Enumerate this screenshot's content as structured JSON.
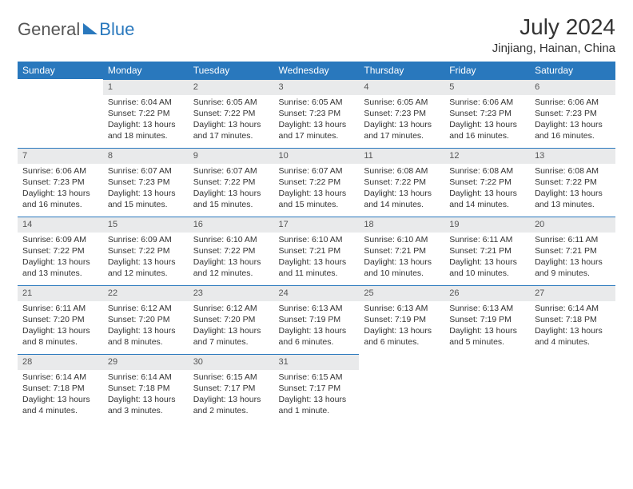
{
  "logo": {
    "part1": "General",
    "part2": "Blue"
  },
  "title": "July 2024",
  "location": "Jinjiang, Hainan, China",
  "colors": {
    "header_bg": "#2978bd",
    "header_text": "#ffffff",
    "daynum_bg": "#e9eaeb",
    "daynum_border": "#2978bd",
    "body_text": "#333333",
    "background": "#ffffff"
  },
  "fonts": {
    "title_size": 28,
    "location_size": 15,
    "th_size": 12,
    "cell_size": 10.5
  },
  "weekdays": [
    "Sunday",
    "Monday",
    "Tuesday",
    "Wednesday",
    "Thursday",
    "Friday",
    "Saturday"
  ],
  "weeks": [
    [
      null,
      {
        "n": "1",
        "sr": "Sunrise: 6:04 AM",
        "ss": "Sunset: 7:22 PM",
        "d1": "Daylight: 13 hours",
        "d2": "and 18 minutes."
      },
      {
        "n": "2",
        "sr": "Sunrise: 6:05 AM",
        "ss": "Sunset: 7:22 PM",
        "d1": "Daylight: 13 hours",
        "d2": "and 17 minutes."
      },
      {
        "n": "3",
        "sr": "Sunrise: 6:05 AM",
        "ss": "Sunset: 7:23 PM",
        "d1": "Daylight: 13 hours",
        "d2": "and 17 minutes."
      },
      {
        "n": "4",
        "sr": "Sunrise: 6:05 AM",
        "ss": "Sunset: 7:23 PM",
        "d1": "Daylight: 13 hours",
        "d2": "and 17 minutes."
      },
      {
        "n": "5",
        "sr": "Sunrise: 6:06 AM",
        "ss": "Sunset: 7:23 PM",
        "d1": "Daylight: 13 hours",
        "d2": "and 16 minutes."
      },
      {
        "n": "6",
        "sr": "Sunrise: 6:06 AM",
        "ss": "Sunset: 7:23 PM",
        "d1": "Daylight: 13 hours",
        "d2": "and 16 minutes."
      }
    ],
    [
      {
        "n": "7",
        "sr": "Sunrise: 6:06 AM",
        "ss": "Sunset: 7:23 PM",
        "d1": "Daylight: 13 hours",
        "d2": "and 16 minutes."
      },
      {
        "n": "8",
        "sr": "Sunrise: 6:07 AM",
        "ss": "Sunset: 7:23 PM",
        "d1": "Daylight: 13 hours",
        "d2": "and 15 minutes."
      },
      {
        "n": "9",
        "sr": "Sunrise: 6:07 AM",
        "ss": "Sunset: 7:22 PM",
        "d1": "Daylight: 13 hours",
        "d2": "and 15 minutes."
      },
      {
        "n": "10",
        "sr": "Sunrise: 6:07 AM",
        "ss": "Sunset: 7:22 PM",
        "d1": "Daylight: 13 hours",
        "d2": "and 15 minutes."
      },
      {
        "n": "11",
        "sr": "Sunrise: 6:08 AM",
        "ss": "Sunset: 7:22 PM",
        "d1": "Daylight: 13 hours",
        "d2": "and 14 minutes."
      },
      {
        "n": "12",
        "sr": "Sunrise: 6:08 AM",
        "ss": "Sunset: 7:22 PM",
        "d1": "Daylight: 13 hours",
        "d2": "and 14 minutes."
      },
      {
        "n": "13",
        "sr": "Sunrise: 6:08 AM",
        "ss": "Sunset: 7:22 PM",
        "d1": "Daylight: 13 hours",
        "d2": "and 13 minutes."
      }
    ],
    [
      {
        "n": "14",
        "sr": "Sunrise: 6:09 AM",
        "ss": "Sunset: 7:22 PM",
        "d1": "Daylight: 13 hours",
        "d2": "and 13 minutes."
      },
      {
        "n": "15",
        "sr": "Sunrise: 6:09 AM",
        "ss": "Sunset: 7:22 PM",
        "d1": "Daylight: 13 hours",
        "d2": "and 12 minutes."
      },
      {
        "n": "16",
        "sr": "Sunrise: 6:10 AM",
        "ss": "Sunset: 7:22 PM",
        "d1": "Daylight: 13 hours",
        "d2": "and 12 minutes."
      },
      {
        "n": "17",
        "sr": "Sunrise: 6:10 AM",
        "ss": "Sunset: 7:21 PM",
        "d1": "Daylight: 13 hours",
        "d2": "and 11 minutes."
      },
      {
        "n": "18",
        "sr": "Sunrise: 6:10 AM",
        "ss": "Sunset: 7:21 PM",
        "d1": "Daylight: 13 hours",
        "d2": "and 10 minutes."
      },
      {
        "n": "19",
        "sr": "Sunrise: 6:11 AM",
        "ss": "Sunset: 7:21 PM",
        "d1": "Daylight: 13 hours",
        "d2": "and 10 minutes."
      },
      {
        "n": "20",
        "sr": "Sunrise: 6:11 AM",
        "ss": "Sunset: 7:21 PM",
        "d1": "Daylight: 13 hours",
        "d2": "and 9 minutes."
      }
    ],
    [
      {
        "n": "21",
        "sr": "Sunrise: 6:11 AM",
        "ss": "Sunset: 7:20 PM",
        "d1": "Daylight: 13 hours",
        "d2": "and 8 minutes."
      },
      {
        "n": "22",
        "sr": "Sunrise: 6:12 AM",
        "ss": "Sunset: 7:20 PM",
        "d1": "Daylight: 13 hours",
        "d2": "and 8 minutes."
      },
      {
        "n": "23",
        "sr": "Sunrise: 6:12 AM",
        "ss": "Sunset: 7:20 PM",
        "d1": "Daylight: 13 hours",
        "d2": "and 7 minutes."
      },
      {
        "n": "24",
        "sr": "Sunrise: 6:13 AM",
        "ss": "Sunset: 7:19 PM",
        "d1": "Daylight: 13 hours",
        "d2": "and 6 minutes."
      },
      {
        "n": "25",
        "sr": "Sunrise: 6:13 AM",
        "ss": "Sunset: 7:19 PM",
        "d1": "Daylight: 13 hours",
        "d2": "and 6 minutes."
      },
      {
        "n": "26",
        "sr": "Sunrise: 6:13 AM",
        "ss": "Sunset: 7:19 PM",
        "d1": "Daylight: 13 hours",
        "d2": "and 5 minutes."
      },
      {
        "n": "27",
        "sr": "Sunrise: 6:14 AM",
        "ss": "Sunset: 7:18 PM",
        "d1": "Daylight: 13 hours",
        "d2": "and 4 minutes."
      }
    ],
    [
      {
        "n": "28",
        "sr": "Sunrise: 6:14 AM",
        "ss": "Sunset: 7:18 PM",
        "d1": "Daylight: 13 hours",
        "d2": "and 4 minutes."
      },
      {
        "n": "29",
        "sr": "Sunrise: 6:14 AM",
        "ss": "Sunset: 7:18 PM",
        "d1": "Daylight: 13 hours",
        "d2": "and 3 minutes."
      },
      {
        "n": "30",
        "sr": "Sunrise: 6:15 AM",
        "ss": "Sunset: 7:17 PM",
        "d1": "Daylight: 13 hours",
        "d2": "and 2 minutes."
      },
      {
        "n": "31",
        "sr": "Sunrise: 6:15 AM",
        "ss": "Sunset: 7:17 PM",
        "d1": "Daylight: 13 hours",
        "d2": "and 1 minute."
      },
      null,
      null,
      null
    ]
  ]
}
